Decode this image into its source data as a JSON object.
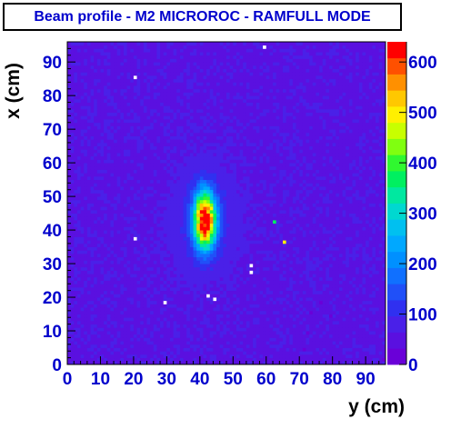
{
  "chart_data": {
    "type": "heatmap",
    "title": "Beam profile - M2 MICROROC - RAMFULL MODE",
    "xlabel": "y (cm)",
    "ylabel": "x (cm)",
    "xlim": [
      0,
      96
    ],
    "ylim": [
      0,
      96
    ],
    "xticks": [
      0,
      10,
      20,
      30,
      40,
      50,
      60,
      70,
      80,
      90
    ],
    "yticks": [
      0,
      10,
      20,
      30,
      40,
      50,
      60,
      70,
      80,
      90
    ],
    "bin_size_cm": 1,
    "background_level": 60,
    "beam_spot": {
      "center_y_cm": 41.5,
      "center_x_cm": 43,
      "sigma_y_cm": 2.2,
      "sigma_x_cm": 5.5,
      "peak_counts": 620
    },
    "halo": {
      "sigma_y_cm": 6,
      "sigma_x_cm": 10,
      "level": 60
    },
    "hot_cells": [
      {
        "y": 65.5,
        "x": 36.5,
        "value": 500
      },
      {
        "y": 42.5,
        "x": 42.5,
        "value": 640
      },
      {
        "y": 62.5,
        "x": 42.5,
        "value": 380
      },
      {
        "y": 87.5,
        "x": 93.5,
        "value": 60
      }
    ],
    "dead_cells": [
      {
        "y": 20.5,
        "x": 85.5
      },
      {
        "y": 20.5,
        "x": 37.5
      },
      {
        "y": 29.5,
        "x": 18.5
      },
      {
        "y": 44.5,
        "x": 19.5
      },
      {
        "y": 55.5,
        "x": 27.5
      },
      {
        "y": 55.5,
        "x": 29.5
      },
      {
        "y": 42.5,
        "x": 20.5
      },
      {
        "y": 59.5,
        "x": 94.5
      }
    ],
    "colorbar": {
      "min": 0,
      "max": 640,
      "ticks": [
        0,
        100,
        200,
        300,
        400,
        500,
        600
      ],
      "colors": [
        "#6a00d8",
        "#5a10e0",
        "#4a20e8",
        "#3030f0",
        "#2050f8",
        "#1070ff",
        "#0090ff",
        "#00a8ff",
        "#00c0f0",
        "#00d8d0",
        "#00e8a0",
        "#00f060",
        "#30f830",
        "#80ff10",
        "#c8ff00",
        "#fff000",
        "#ffc800",
        "#ff9000",
        "#ff5000",
        "#ff0000"
      ]
    }
  }
}
